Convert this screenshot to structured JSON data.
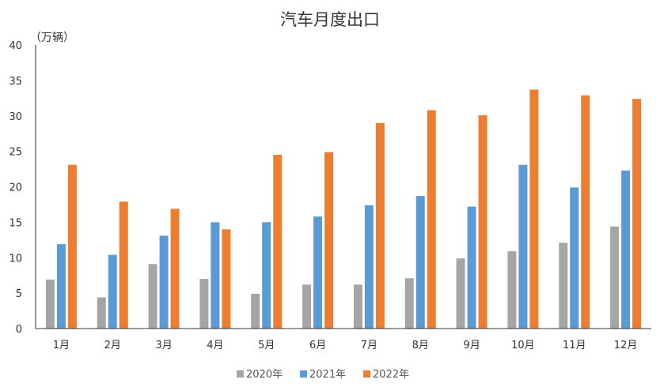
{
  "chart_data": {
    "type": "bar",
    "title": "汽车月度出口",
    "unit_label": "（万辆）",
    "categories": [
      "1月",
      "2月",
      "3月",
      "4月",
      "5月",
      "6月",
      "7月",
      "8月",
      "9月",
      "10月",
      "11月",
      "12月"
    ],
    "series": [
      {
        "name": "2020年",
        "color": "#a5a5a5",
        "values": [
          6.9,
          4.4,
          9.1,
          7.0,
          4.9,
          6.2,
          6.2,
          7.1,
          9.9,
          10.9,
          12.1,
          14.4
        ]
      },
      {
        "name": "2021年",
        "color": "#5b9bd5",
        "values": [
          11.9,
          10.4,
          13.1,
          15.0,
          15.0,
          15.8,
          17.4,
          18.7,
          17.2,
          23.1,
          19.9,
          22.3
        ]
      },
      {
        "name": "2022年",
        "color": "#ed7d31",
        "values": [
          23.1,
          17.9,
          16.9,
          14.0,
          24.5,
          24.9,
          29.0,
          30.8,
          30.1,
          33.7,
          32.9,
          32.4
        ]
      }
    ],
    "ylim": [
      0,
      40
    ],
    "yticks": [
      0,
      5,
      10,
      15,
      20,
      25,
      30,
      35,
      40
    ],
    "grid": false,
    "legend_position": "bottom"
  }
}
